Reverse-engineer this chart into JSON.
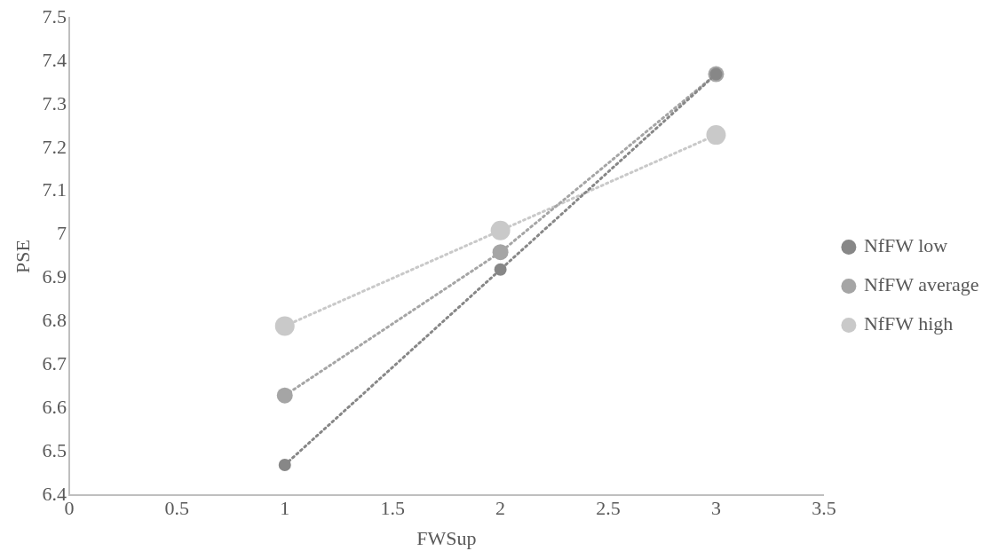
{
  "chart_data": {
    "type": "line",
    "xlabel": "FWSup",
    "ylabel": "PSE",
    "x": [
      1,
      2,
      3
    ],
    "series": [
      {
        "name": "NfFW low",
        "color": "#878787",
        "values": [
          6.47,
          6.92,
          7.37
        ]
      },
      {
        "name": "NfFW average",
        "color": "#a5a5a5",
        "values": [
          6.63,
          6.96,
          7.37
        ]
      },
      {
        "name": "NfFW high",
        "color": "#c9c9c9",
        "values": [
          6.79,
          7.01,
          7.23
        ]
      }
    ],
    "xlim": [
      0,
      3.5
    ],
    "xticks": [
      0,
      0.5,
      1,
      1.5,
      2,
      2.5,
      3,
      3.5
    ],
    "ylim": [
      6.4,
      7.5
    ],
    "yticks": [
      6.4,
      6.5,
      6.6,
      6.7,
      6.8,
      6.9,
      7,
      7.1,
      7.2,
      7.3,
      7.4,
      7.5
    ],
    "grid": false,
    "legend": "right",
    "marker": "circle",
    "line_style": "dotted"
  }
}
